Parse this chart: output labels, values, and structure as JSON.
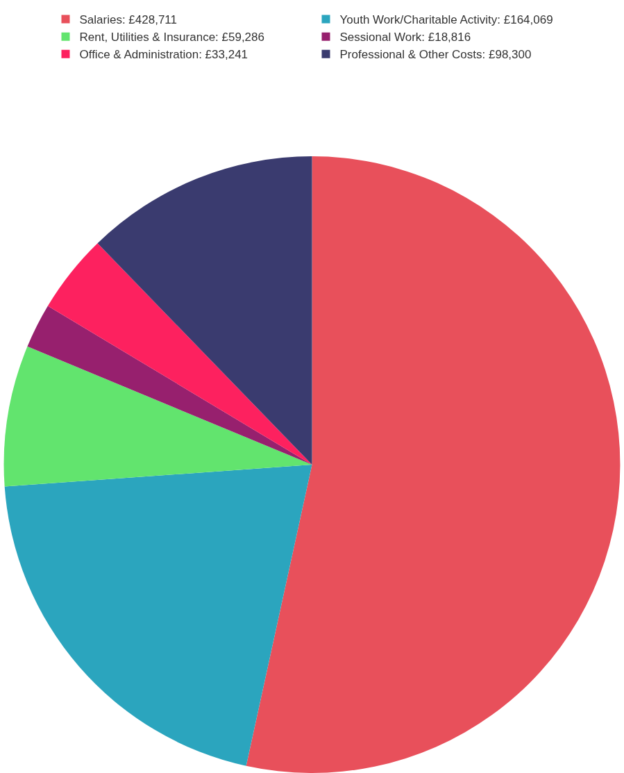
{
  "chart_data": {
    "type": "pie",
    "categories": [
      "Salaries: £428,711",
      "Youth Work/Charitable Activity: £164,069",
      "Rent, Utilities & Insurance: £59,286",
      "Sessional Work: £18,816",
      "Office & Administration: £33,241",
      "Professional & Other Costs: £98,300"
    ],
    "values": [
      428711,
      164069,
      59286,
      18816,
      33241,
      98300
    ],
    "colors": [
      "#e8505b",
      "#2ba5be",
      "#62e46e",
      "#97206e",
      "#fd215f",
      "#3a3b6f"
    ],
    "legend": "top"
  }
}
